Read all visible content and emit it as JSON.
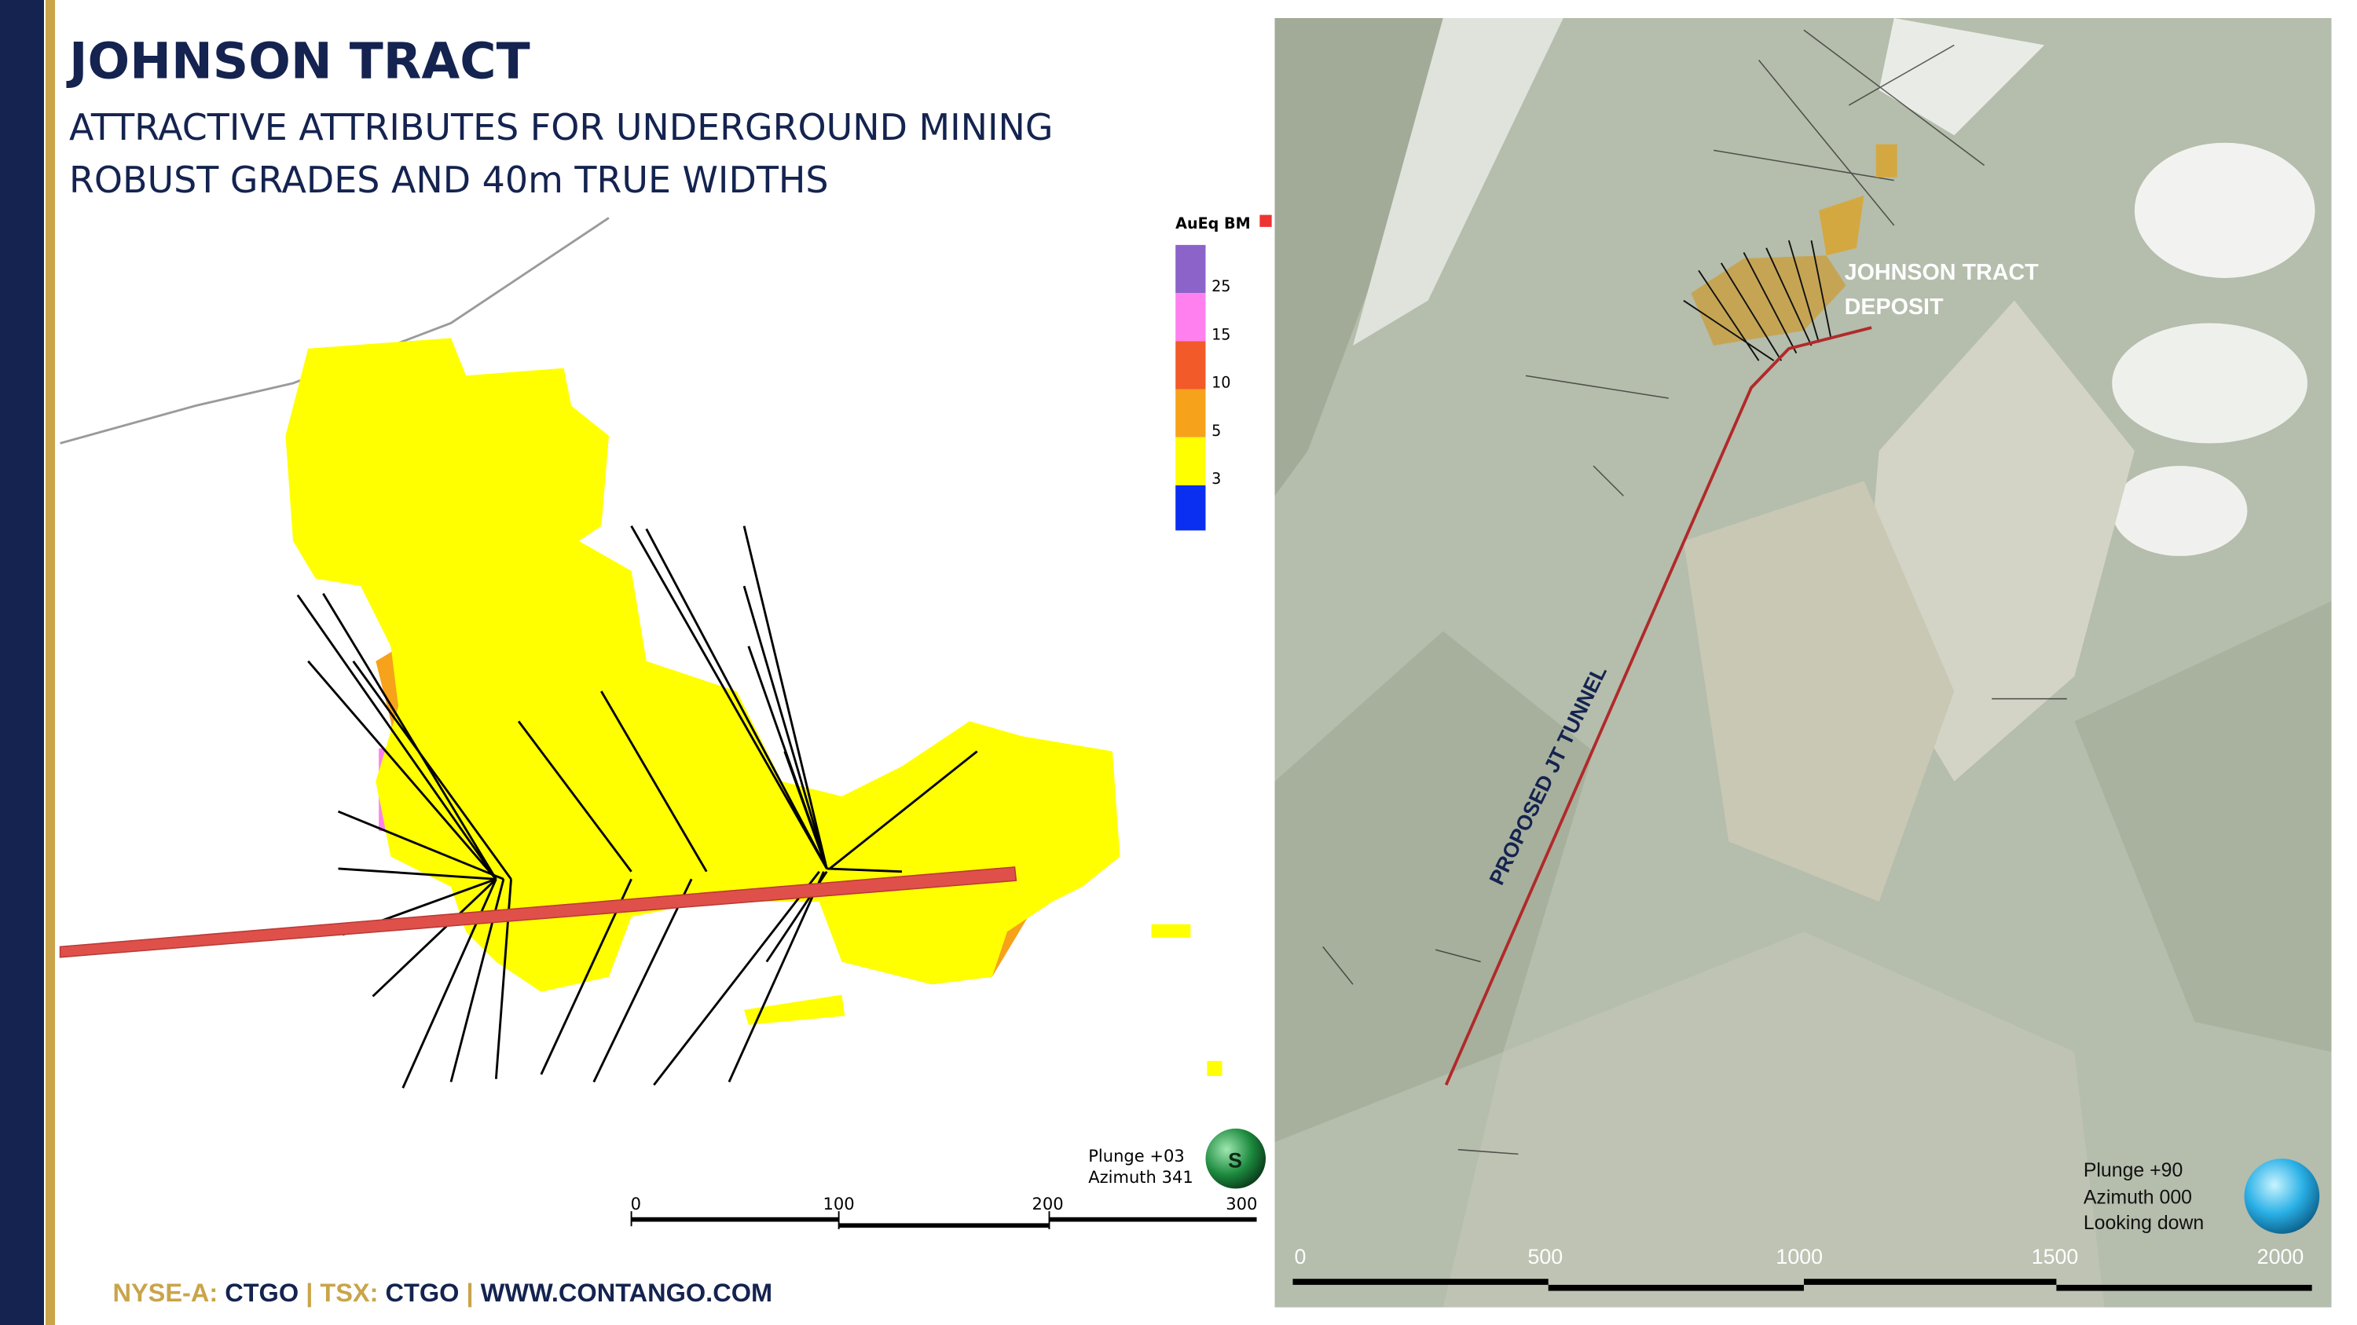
{
  "header": {
    "title": "JOHNSON TRACT",
    "subtitle_lines": [
      "ATTRACTIVE ATTRIBUTES FOR UNDERGROUND MINING",
      "ROBUST GRADES AND 40m TRUE WIDTHS"
    ]
  },
  "section_view": {
    "legend_title": "AuEq BM",
    "legend_labels": [
      "25",
      "15",
      "10",
      "5",
      "3"
    ],
    "view_lines": [
      "Plunge +03",
      "Azimuth 341"
    ],
    "compass_letter": "S",
    "scale_labels": [
      "0",
      "100",
      "200",
      "300"
    ]
  },
  "plan_view": {
    "deposit_label": [
      "JOHNSON TRACT",
      "DEPOSIT"
    ],
    "tunnel_label": "PROPOSED JT TUNNEL",
    "view_lines": [
      "Plunge +90",
      "Azimuth 000",
      "Looking down"
    ],
    "scale_labels": [
      "0",
      "500",
      "1000",
      "1500",
      "2000"
    ]
  },
  "footer": {
    "parts": [
      "NYSE-A:",
      "CTGO",
      "|",
      "TSX:",
      "CTGO",
      "|",
      "WWW.CONTANGO.COM"
    ]
  }
}
